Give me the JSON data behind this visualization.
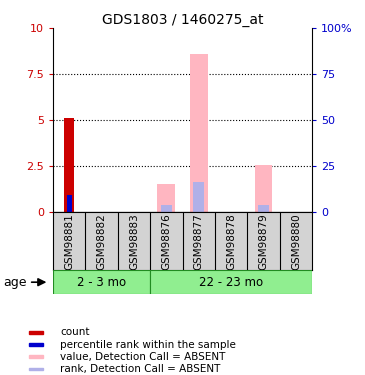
{
  "title": "GDS1803 / 1460275_at",
  "samples": [
    "GSM98881",
    "GSM98882",
    "GSM98883",
    "GSM98876",
    "GSM98877",
    "GSM98878",
    "GSM98879",
    "GSM98880"
  ],
  "groups": [
    {
      "label": "2 - 3 mo",
      "count": 3
    },
    {
      "label": "22 - 23 mo",
      "count": 5
    }
  ],
  "count_values": [
    5.1,
    0,
    0,
    0,
    0,
    0,
    0,
    0
  ],
  "percentile_values": [
    0.9,
    0,
    0,
    0,
    0,
    0,
    0,
    0
  ],
  "absent_value_values": [
    0,
    0,
    0,
    1.5,
    8.6,
    0,
    2.55,
    0
  ],
  "absent_rank_values": [
    0,
    0,
    0,
    0.35,
    1.65,
    0,
    0.35,
    0
  ],
  "ylim": [
    0,
    10
  ],
  "yticks": [
    0,
    2.5,
    5.0,
    7.5,
    10
  ],
  "ytick_labels": [
    "0",
    "2.5",
    "5",
    "7.5",
    "10"
  ],
  "y2ticks": [
    0,
    25,
    50,
    75,
    100
  ],
  "y2tick_labels": [
    "0",
    "25",
    "50",
    "75",
    "100%"
  ],
  "left_color": "#cc0000",
  "right_color": "#0000cc",
  "absent_value_color": "#ffb6c1",
  "absent_rank_color": "#b0b0e8",
  "count_bar_width": 0.3,
  "absent_value_bar_width": 0.55,
  "absent_rank_bar_width": 0.35,
  "percentile_bar_width": 0.15,
  "group_fill_color": "#90ee90",
  "group_edge_color": "#228B22",
  "sample_bg_color": "#d3d3d3",
  "legend_items": [
    {
      "label": "count",
      "color": "#cc0000"
    },
    {
      "label": "percentile rank within the sample",
      "color": "#0000cc"
    },
    {
      "label": "value, Detection Call = ABSENT",
      "color": "#ffb6c1"
    },
    {
      "label": "rank, Detection Call = ABSENT",
      "color": "#b0b0e8"
    }
  ],
  "age_label": "age"
}
